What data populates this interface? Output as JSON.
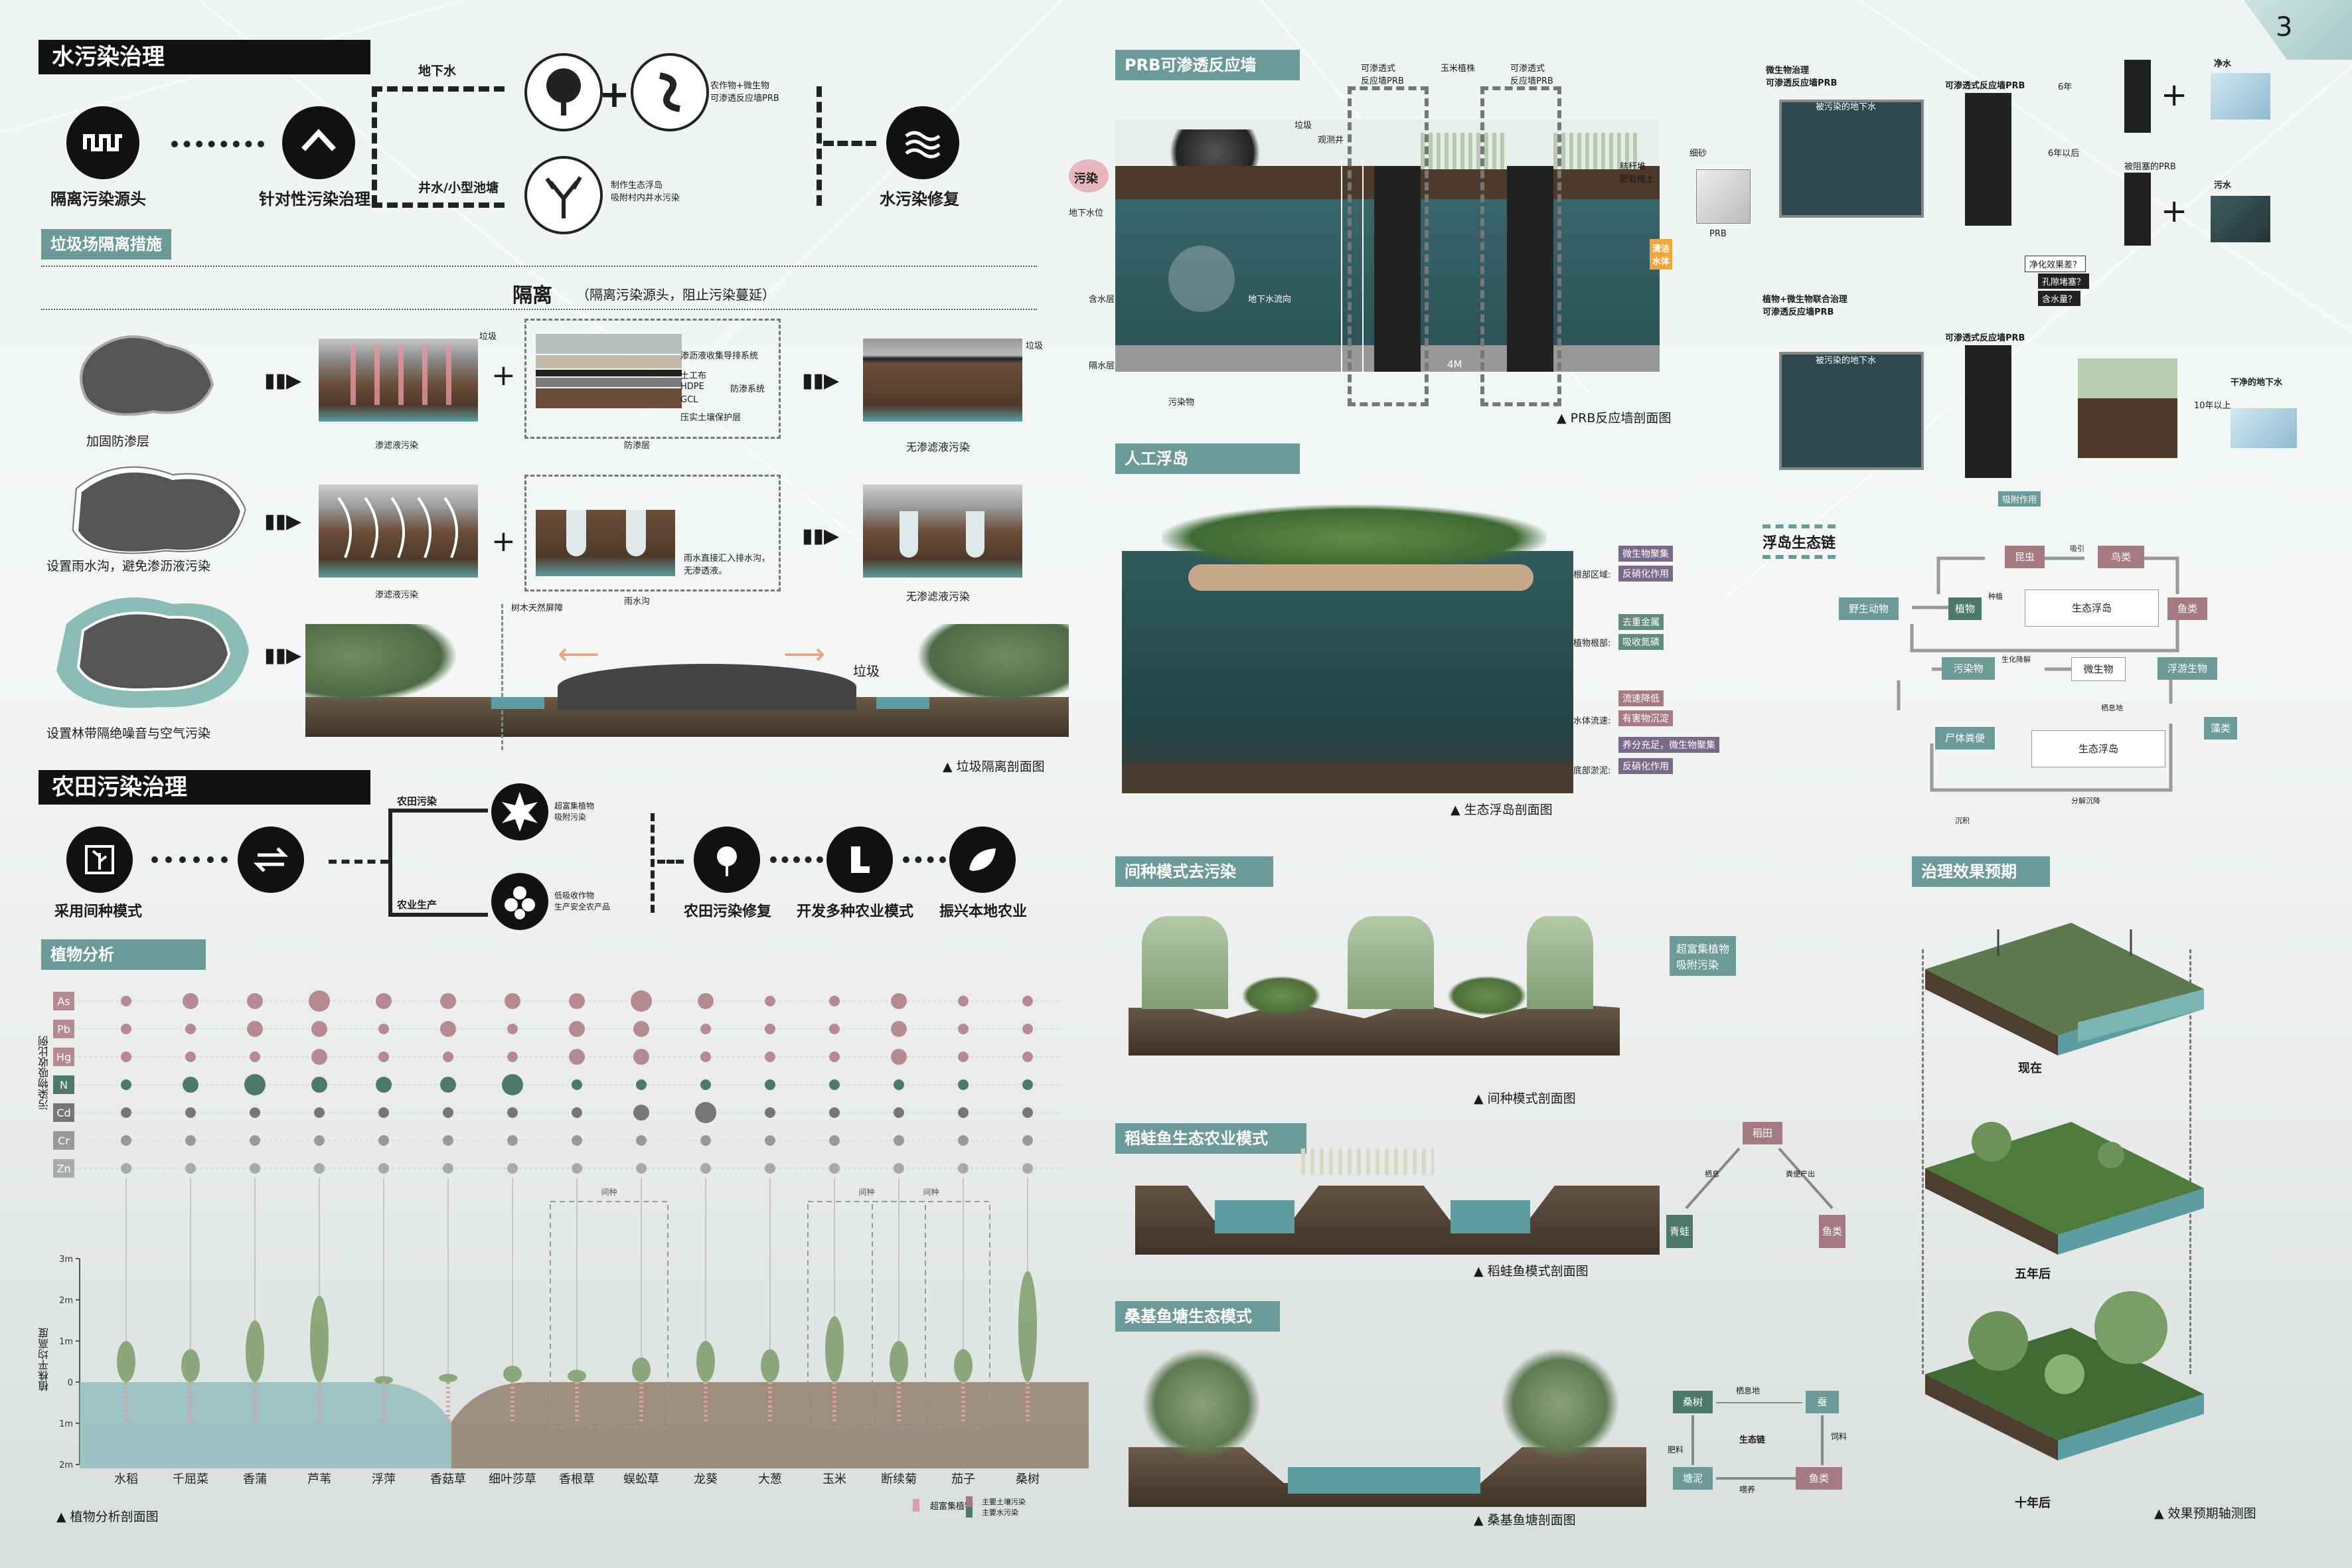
{
  "page_number": "3",
  "water": {
    "title": "水污染治理",
    "step1": "隔离污染源头",
    "step2": "针对性污染治理",
    "step3": "水污染修复",
    "branch_top": "地下水",
    "branch_bottom": "井水/小型池塘",
    "top_note": "农作物+微生物\n可渗透反应墙PRB",
    "bottom_note": "制作生态浮岛\n吸附村内井水污染",
    "sub_title": "垃圾场隔离措施",
    "isolation_title": "隔离",
    "isolation_sub": "（隔离污染源头，阻止污染蔓延）",
    "row1_label": "加固防渗层",
    "row2_label": "设置雨水沟，避免渗沥液污染",
    "row3_label": "设置林带隔绝噪音与空气污染",
    "garbage": "垃圾",
    "leachate": "渗滤液污染",
    "no_leachate": "无渗滤液污染",
    "layer_drain": "渗沥液收集导排系统",
    "layer_geo": "土工布",
    "layer_hdpe": "HDPE",
    "layer_gcl": "GCL",
    "layer_protect": "压实土壤保护层",
    "layer_seep": "防渗系统",
    "liner": "防渗层",
    "rain_note": "雨水直接汇入排水沟，无渗透液。",
    "rain_ditch": "雨水沟",
    "barrier": "树木天然屏障",
    "caption": "垃圾隔离剖面图"
  },
  "farm": {
    "title": "农田污染治理",
    "step1": "采用间种模式",
    "top_branch": "农田污染",
    "bottom_branch": "农业生产",
    "top_note": "超富集植物\n吸附污染",
    "bottom_note": "低吸收作物\n生产安全农产品",
    "step_a": "农田污染修复",
    "step_b": "开发多种农业模式",
    "step_c": "振兴本地农业"
  },
  "plant": {
    "title": "植物分析",
    "yaxis_label": "污染物吸收比例",
    "height_label": "植株平均高度",
    "elements": [
      "As",
      "Pb",
      "Hg",
      "N",
      "Cd",
      "Cr",
      "Zn"
    ],
    "element_colors": [
      "#b58a90",
      "#b58a90",
      "#b58a90",
      "#4d7a68",
      "#777777",
      "#999999",
      "#aaaaaa"
    ],
    "species": [
      "水稻",
      "千屈菜",
      "香蒲",
      "芦苇",
      "浮萍",
      "香菇草",
      "细叶莎草",
      "香根草",
      "蜈蚣草",
      "龙葵",
      "大葱",
      "玉米",
      "断续菊",
      "茄子",
      "桑树"
    ],
    "dot_sizes": [
      [
        1,
        2,
        2,
        3,
        2,
        2,
        2,
        2,
        3,
        2,
        1,
        1,
        2,
        1,
        1
      ],
      [
        1,
        1,
        2,
        2,
        1,
        2,
        1,
        2,
        2,
        1,
        1,
        1,
        2,
        1,
        1
      ],
      [
        1,
        1,
        1,
        2,
        1,
        1,
        1,
        2,
        2,
        1,
        1,
        1,
        2,
        1,
        1
      ],
      [
        1,
        2,
        3,
        2,
        2,
        2,
        3,
        1,
        1,
        1,
        1,
        1,
        1,
        1,
        1
      ],
      [
        1,
        1,
        1,
        1,
        1,
        1,
        1,
        1,
        2,
        3,
        1,
        1,
        1,
        1,
        1
      ],
      [
        1,
        1,
        1,
        1,
        1,
        1,
        1,
        1,
        1,
        1,
        1,
        1,
        1,
        1,
        1
      ],
      [
        1,
        1,
        1,
        1,
        1,
        1,
        1,
        1,
        1,
        1,
        1,
        1,
        1,
        1,
        1
      ]
    ],
    "heights_m": [
      1,
      0.8,
      1.5,
      2.1,
      0.1,
      0.2,
      0.4,
      0.3,
      0.6,
      1.0,
      0.8,
      1.6,
      1.0,
      0.8,
      2.7
    ],
    "ticks": [
      "3m",
      "2m",
      "1m",
      "0",
      "1m",
      "2m"
    ],
    "interplant": "间种",
    "legend_a": "超富集植物",
    "legend_b": "主要土壤污染",
    "legend_c": "主要水污染",
    "caption": "植物分析剖面图"
  },
  "prb": {
    "title": "PRB可渗透反应墙",
    "pollution": "污染",
    "landfill": "垃圾",
    "obs_well": "观测井",
    "wall1": "可渗透式\n反应墙PRB",
    "corn": "玉米植株",
    "wall2": "可渗透式\n反应墙PRB",
    "straw": "秸秆堆\n肥栽植土",
    "sand": "细砂",
    "gw_level": "地下水位",
    "aquifer": "含水层",
    "aquitard": "隔水层",
    "flow": "地下水流向",
    "clean": "清洁\n水体",
    "pollutant": "污染物",
    "width": "4M",
    "prb_label": "PRB",
    "caption": "PRB反应墙剖面图",
    "chain_top_title": "微生物治理\n可渗透反应墙PRB",
    "polluted_gw": "被污染的地下水",
    "prb_wall": "可渗透式反应墙PRB",
    "six_years": "6年",
    "after_six": "6年以后",
    "blocked": "被阻塞的PRB",
    "clean_water": "净水",
    "dirty_water": "污水",
    "chain_bottom_title": "植物+微生物联合治理\n可渗透反应墙PRB",
    "clean_gw": "干净的地下水",
    "ten_years": "10年以上",
    "adsorb": "吸附作用",
    "purify_q": "净化效果差？",
    "insect": "孔隙堵塞？",
    "oxygen": "含水量？"
  },
  "island": {
    "title": "人工浮岛",
    "root_zone": "根部区域:",
    "tag1": "微生物聚集",
    "tag2": "反硝化作用",
    "plant_root": "植物根部:",
    "tag3": "去重金属",
    "tag4": "吸收氮磷",
    "water_flow": "水体流速:",
    "tag5": "流速降低",
    "tag6": "有害物沉淀",
    "sludge": "底部淤泥:",
    "tag7": "养分充足，微生物聚集",
    "tag8": "反硝化作用",
    "caption": "生态浮岛剖面图",
    "chain_title": "浮岛生态链",
    "n_insect": "昆虫",
    "n_bird": "鸟类",
    "n_wild": "野生动物",
    "n_plant": "植物",
    "n_island": "生态浮岛",
    "n_fish": "鱼类",
    "n_pollutant": "污染物",
    "n_microbe": "微生物",
    "n_plankton": "浮游生物",
    "n_corpse": "尸体粪便",
    "n_island2": "生态浮岛",
    "n_algae": "藻类",
    "n_sink": "沉积",
    "l_attract": "吸引",
    "l_seed": "种植",
    "l_bio": "生化降解",
    "l_habitat": "栖息地",
    "l_decompose": "分解沉降",
    "l_feed": "捕食"
  },
  "intercrop": {
    "title": "间种模式去污染",
    "tag": "超富集植物\n吸附污染",
    "caption": "间种模式剖面图"
  },
  "ricefish": {
    "title": "稻蛙鱼生态农业模式",
    "n_rice": "稻田",
    "n_frog": "青蛙",
    "n_fish": "鱼类",
    "l1": "栖息",
    "l2": "粪便产出",
    "caption": "稻蛙鱼模式剖面图"
  },
  "mulberry": {
    "title": "桑基鱼塘生态模式",
    "n_tree": "桑树",
    "n_silk": "蚕",
    "n_mud": "塘泥",
    "n_fish": "鱼类",
    "center": "生态链",
    "l_habitat": "栖息地",
    "l_feed": "饲料",
    "l_fert": "肥料",
    "l_food": "喂养",
    "caption": "桑基鱼塘剖面图"
  },
  "effect": {
    "title": "治理效果预期",
    "now": "现在",
    "five": "五年后",
    "ten": "十年后",
    "caption": "效果预期轴测图"
  }
}
